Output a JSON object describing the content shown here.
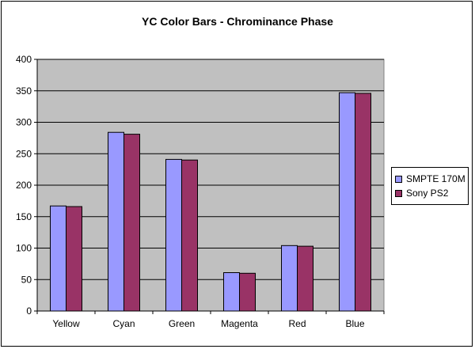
{
  "chart_data": {
    "type": "bar",
    "title": "YC Color Bars - Chrominance Phase",
    "xlabel": "",
    "ylabel": "",
    "categories": [
      "Yellow",
      "Cyan",
      "Green",
      "Magenta",
      "Red",
      "Blue"
    ],
    "series": [
      {
        "name": "SMPTE 170M",
        "values": [
          167,
          284,
          241,
          61,
          104,
          347
        ],
        "color": "#9999FF"
      },
      {
        "name": "Sony PS2",
        "values": [
          166,
          281,
          240,
          60,
          103,
          346
        ],
        "color": "#993366"
      }
    ],
    "ylim": [
      0,
      400
    ],
    "yticks": [
      "0",
      "50",
      "100",
      "150",
      "200",
      "250",
      "300",
      "350",
      "400"
    ],
    "grid": true,
    "legend": "right",
    "plot_background": "#C0C0C0"
  }
}
